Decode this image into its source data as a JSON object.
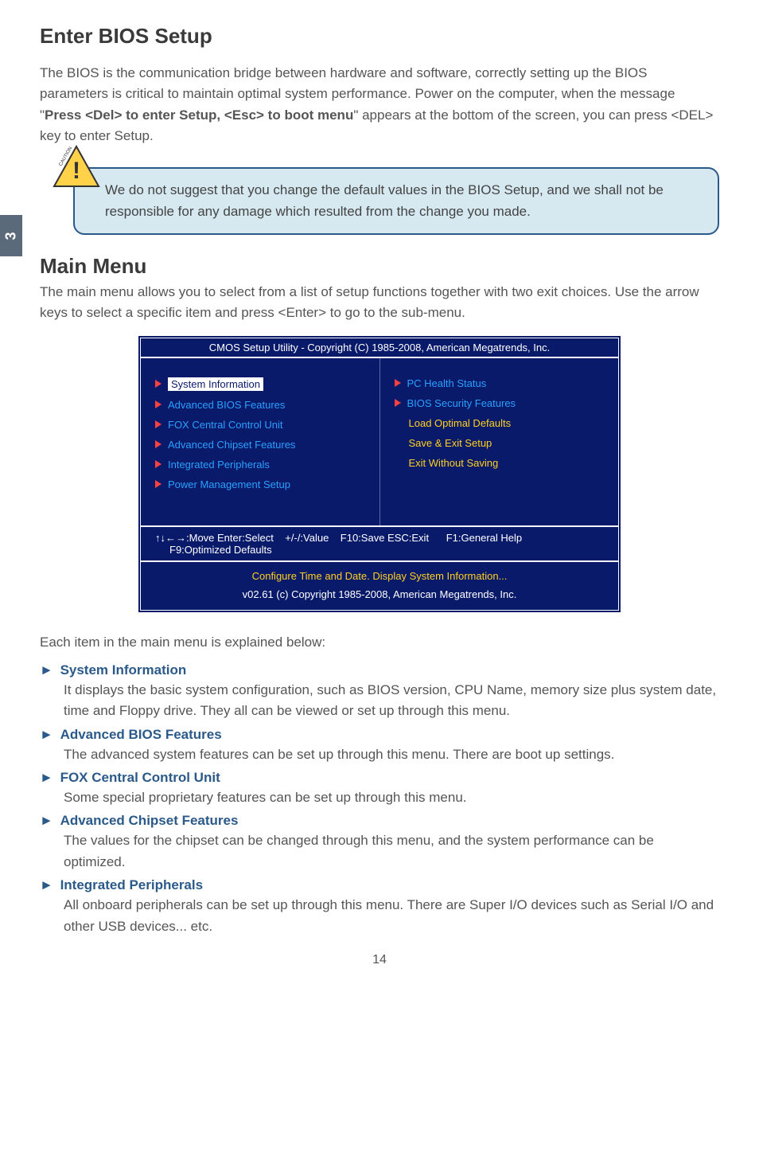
{
  "tab_number": "3",
  "title_enter": "Enter BIOS Setup",
  "intro_enter": "The BIOS is the communication bridge between hardware and software, correctly setting up the BIOS parameters is critical to maintain optimal system performance. Power on the computer, when the message \"Press <Del> to enter Setup, <Esc> to boot menu\" appears at the bottom of the screen, you can press <DEL> key to enter Setup.",
  "intro_prefix": "The BIOS is the communication bridge between hardware and software, correctly setting up the BIOS parameters is critical to maintain optimal system performance. Power on the computer, when the message \"",
  "intro_bold": "Press <Del> to enter Setup, <Esc> to boot menu",
  "intro_suffix": "\" appears at the bottom of the screen, you can press <DEL> key to enter Setup.",
  "caution_label": "CAUTION",
  "caution_text": "We do not suggest that you change the default values in the BIOS Setup, and we shall not be responsible for any damage which resulted from the change you made.",
  "title_main": "Main Menu",
  "intro_main": "The main menu allows you to select from a list of setup functions together with two exit choices. Use the arrow keys to select a specific item and press <Enter> to go to the sub-menu.",
  "bios": {
    "header": "CMOS Setup Utility - Copyright (C) 1985-2008, American Megatrends, Inc.",
    "left": [
      {
        "label": "System Information",
        "arrow": true,
        "selected": true
      },
      {
        "label": "Advanced BIOS Features",
        "arrow": true
      },
      {
        "label": "FOX Central Control Unit",
        "arrow": true
      },
      {
        "label": "Advanced Chipset Features",
        "arrow": true
      },
      {
        "label": "Integrated Peripherals",
        "arrow": true
      },
      {
        "label": "Power Management Setup",
        "arrow": true
      }
    ],
    "right": [
      {
        "label": "PC Health Status",
        "arrow": true
      },
      {
        "label": "BIOS Security Features",
        "arrow": true
      },
      {
        "label": "Load Optimal Defaults",
        "arrow": false,
        "yellow": true
      },
      {
        "label": "Save & Exit Setup",
        "arrow": false,
        "yellow": true
      },
      {
        "label": "Exit Without Saving",
        "arrow": false,
        "yellow": true
      }
    ],
    "keys1": "↑↓←→:Move  Enter:Select",
    "keys2": "+/-/:Value",
    "keys3": "F10:Save   ESC:Exit",
    "keys4": "F1:General Help",
    "keys_line2": "F9:Optimized Defaults",
    "footer1": "Configure Time and Date.  Display System Information...",
    "footer2": "v02.61   (c) Copyright 1985-2008, American Megatrends, Inc."
  },
  "explain_intro": "Each item in the main menu is explained below:",
  "items": [
    {
      "title": "System Information",
      "desc": "It displays the basic system configuration, such as BIOS version, CPU Name, memory size plus system date, time and Floppy drive. They all can be viewed or set up through this menu."
    },
    {
      "title": "Advanced BIOS Features",
      "desc": "The advanced system features can be set up through this menu. There are boot up settings."
    },
    {
      "title": "FOX Central Control Unit",
      "desc": "Some special proprietary features can be set up through this menu."
    },
    {
      "title": "Advanced Chipset Features",
      "desc": "The values for the chipset can be changed through this menu, and the system performance can be optimized."
    },
    {
      "title": "Integrated Peripherals",
      "desc": "All onboard peripherals can be set up through this menu. There are Super I/O devices such as Serial I/O and other USB devices... etc."
    }
  ],
  "page_number": "14",
  "colors": {
    "bios_bg": "#0a1a6a",
    "bios_link": "#2aa0ff",
    "bios_yellow": "#ffd020",
    "heading_blue": "#2b5a8a",
    "caution_bg": "#d6e9f0"
  }
}
